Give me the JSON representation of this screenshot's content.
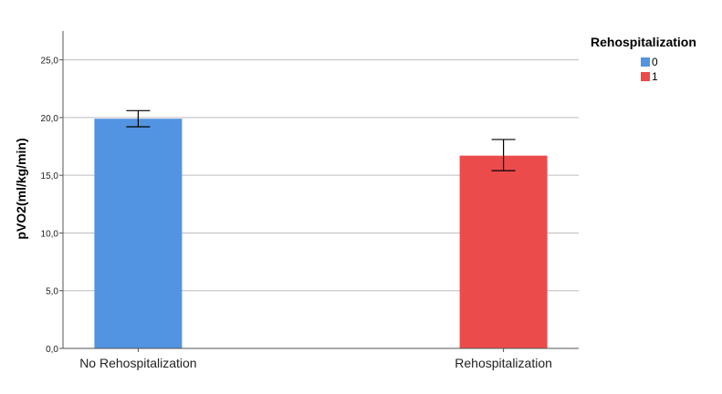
{
  "chart_data": {
    "type": "bar",
    "ylabel": "pVO2(ml/kg/min)",
    "ylim": [
      0,
      27.5
    ],
    "yticks": [
      "0,0",
      "5,0",
      "10,0",
      "15,0",
      "20,0",
      "25,0"
    ],
    "ytick_values": [
      0,
      5,
      10,
      15,
      20,
      25
    ],
    "categories": [
      "No Rehospitalization",
      "Rehospitalization"
    ],
    "series": [
      {
        "name": "0",
        "color": "#5294e2",
        "values": [
          19.9,
          null
        ],
        "err_low": [
          19.2,
          null
        ],
        "err_high": [
          20.6,
          null
        ]
      },
      {
        "name": "1",
        "color": "#ec4b4b",
        "values": [
          null,
          16.7
        ],
        "err_low": [
          null,
          15.4
        ],
        "err_high": [
          null,
          18.1
        ]
      }
    ],
    "grid": true,
    "legend": {
      "title": "Rehospitalization",
      "placement": "top-right"
    }
  }
}
